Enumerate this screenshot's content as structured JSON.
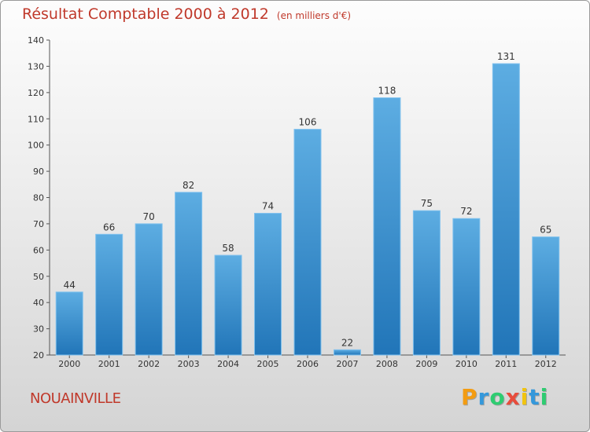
{
  "title": "Résultat Comptable 2000 à 2012",
  "subtitle": "(en milliers d'€)",
  "place": "NOUAINVILLE",
  "logo": {
    "letters": [
      "P",
      "r",
      "o",
      "x",
      "i",
      "t",
      "i"
    ],
    "colors": [
      "#f39c12",
      "#3498db",
      "#2ecc71",
      "#e74c3c",
      "#f1c40f",
      "#3498db",
      "#2ecc71"
    ]
  },
  "colors": {
    "title": "#c0392b",
    "bar_top": "#5dade2",
    "bar_bottom": "#2175b8",
    "axis": "#555555"
  },
  "chart_data": {
    "type": "bar",
    "categories": [
      "2000",
      "2001",
      "2002",
      "2003",
      "2004",
      "2005",
      "2006",
      "2007",
      "2008",
      "2009",
      "2010",
      "2011",
      "2012"
    ],
    "values": [
      44,
      66,
      70,
      82,
      58,
      74,
      106,
      22,
      118,
      75,
      72,
      131,
      65
    ],
    "ylim": [
      20,
      140
    ],
    "yticks": [
      20,
      30,
      40,
      50,
      60,
      70,
      80,
      90,
      100,
      110,
      120,
      130,
      140
    ],
    "grid": false,
    "data_labels": true
  }
}
